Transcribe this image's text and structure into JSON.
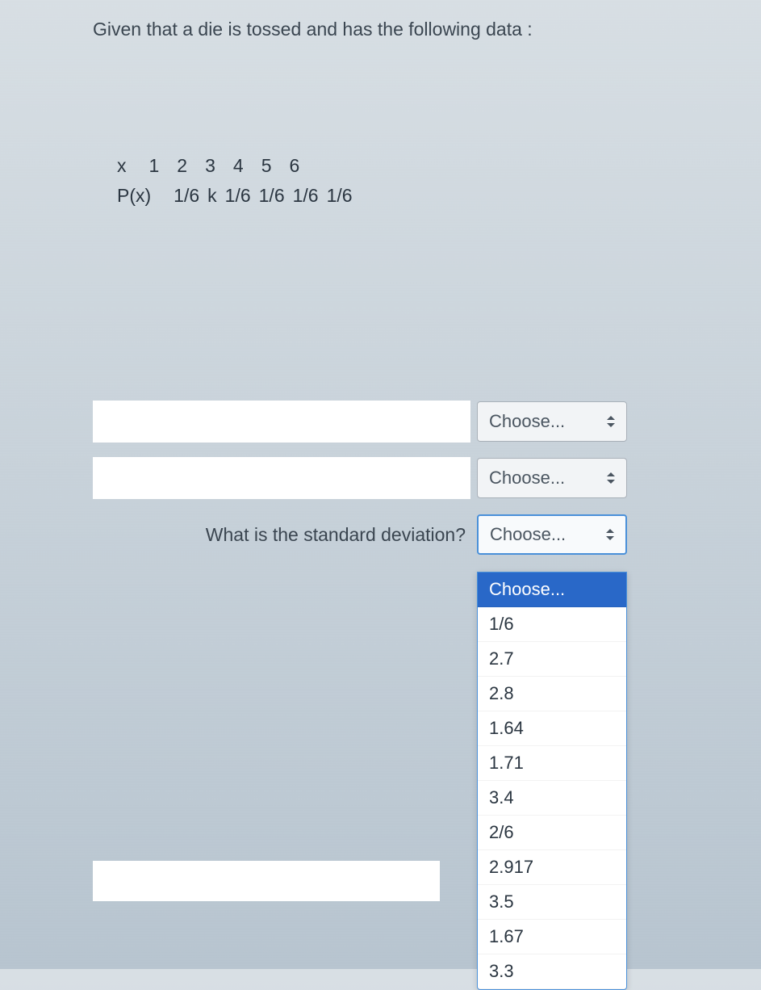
{
  "question": {
    "text": "Given that a die is tossed and has the following data :"
  },
  "table": {
    "rows": [
      {
        "label": "x",
        "cells": [
          "1",
          "2",
          "3",
          "4",
          "5",
          "6"
        ]
      },
      {
        "label": "P(x)",
        "cells": [
          "1/6",
          "k",
          "1/6",
          "1/6",
          "1/6",
          "1/6"
        ]
      }
    ]
  },
  "prompts": {
    "std_dev": "What is the standard deviation?"
  },
  "select": {
    "placeholder": "Choose..."
  },
  "dropdown": {
    "options": [
      "Choose...",
      "1/6",
      "2.7",
      "2.8",
      "1.64",
      "1.71",
      "3.4",
      "2/6",
      "2.917",
      "3.5",
      "1.67",
      "3.3"
    ],
    "selected_index": 0
  },
  "colors": {
    "bg_top": "#d8dfe4",
    "bg_bottom": "#b8c5d0",
    "text": "#3a4550",
    "select_border": "#a8b0b8",
    "active_border": "#4a90d9",
    "selected_bg": "#2968c8"
  }
}
